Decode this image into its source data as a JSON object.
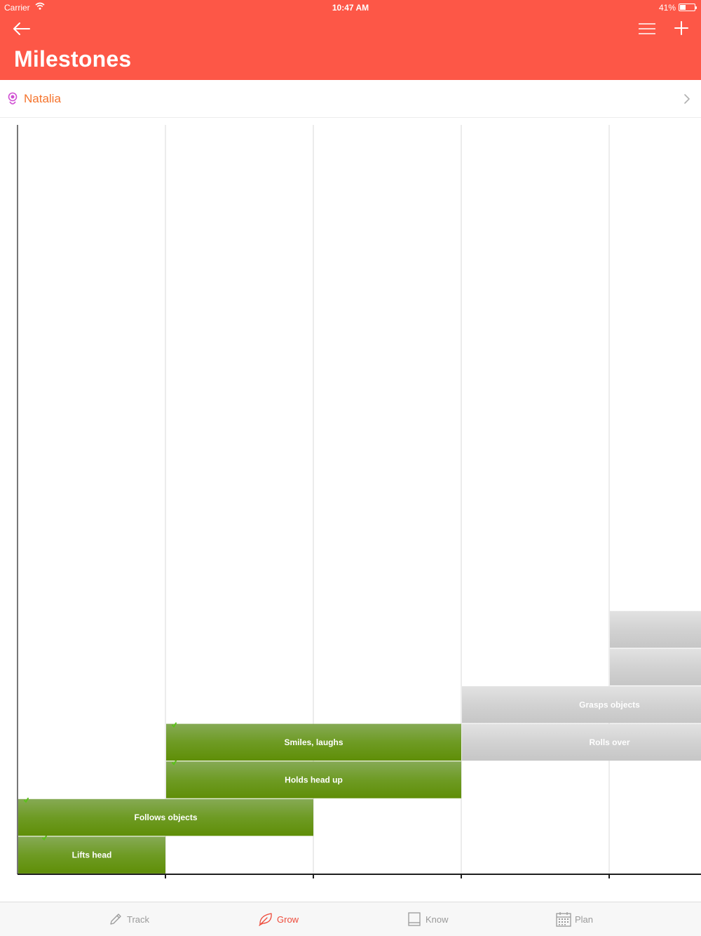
{
  "status_bar": {
    "carrier": "Carrier",
    "time": "10:47 AM",
    "battery": "41%"
  },
  "header": {
    "title": "Milestones",
    "back_icon": "arrow-left-icon",
    "menu_icon": "list-icon",
    "add_icon": "plus-icon",
    "color": "#fd5747"
  },
  "child": {
    "name": "Natalia",
    "icon": "baby-icon",
    "name_color": "#f5742d"
  },
  "chart_data": {
    "type": "gantt",
    "columns": 5,
    "completed_color": "#6a9b1b",
    "pending_color": "#cfcfcf",
    "milestones": [
      {
        "label": "Lifts head",
        "start": 0,
        "end": 1,
        "row": 0,
        "done": true
      },
      {
        "label": "Follows objects",
        "start": 0,
        "end": 2,
        "row": 1,
        "done": true
      },
      {
        "label": "Holds head up",
        "start": 1,
        "end": 3,
        "row": 2,
        "done": true
      },
      {
        "label": "Smiles, laughs",
        "start": 1,
        "end": 3,
        "row": 3,
        "done": true
      },
      {
        "label": "Rolls over",
        "start": 3,
        "end": 5,
        "row": 3,
        "done": false
      },
      {
        "label": "Grasps objects",
        "start": 3,
        "end": 5,
        "row": 4,
        "done": false
      },
      {
        "label": "",
        "start": 4,
        "end": 5,
        "row": 5,
        "done": false
      },
      {
        "label": "",
        "start": 4,
        "end": 5,
        "row": 6,
        "done": false
      }
    ]
  },
  "tabs": [
    {
      "label": "Track",
      "icon": "pencil-icon",
      "active": false
    },
    {
      "label": "Grow",
      "icon": "leaf-icon",
      "active": true
    },
    {
      "label": "Know",
      "icon": "book-icon",
      "active": false
    },
    {
      "label": "Plan",
      "icon": "calendar-icon",
      "active": false
    }
  ]
}
